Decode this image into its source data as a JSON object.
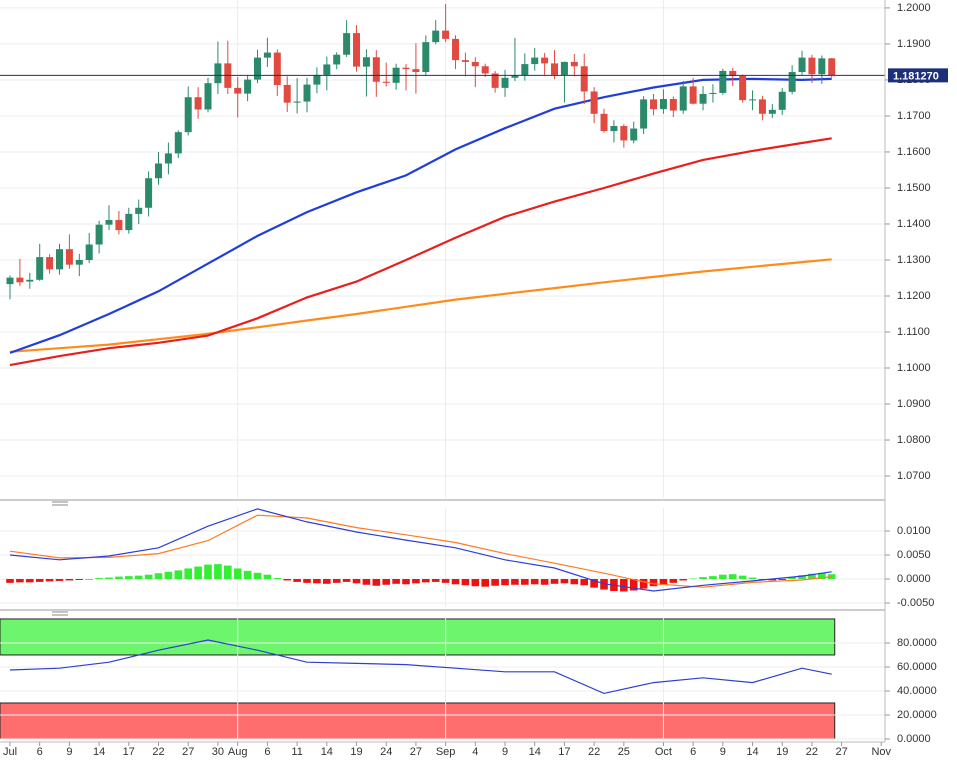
{
  "chart_data": [
    {
      "type": "candlestick",
      "xlim": [
        -1.01,
        88.38
      ],
      "ylim": [
        1.0639,
        1.2022
      ],
      "grid": true,
      "yticks": [
        {
          "value": 1.2,
          "label": "1.2000"
        },
        {
          "value": 1.19,
          "label": "1.1900"
        },
        {
          "value": 1.18,
          "label": "1.1800"
        },
        {
          "value": 1.17,
          "label": "1.1700"
        },
        {
          "value": 1.16,
          "label": "1.1600"
        },
        {
          "value": 1.15,
          "label": "1.1500"
        },
        {
          "value": 1.14,
          "label": "1.1400"
        },
        {
          "value": 1.13,
          "label": "1.1300"
        },
        {
          "value": 1.12,
          "label": "1.1200"
        },
        {
          "value": 1.11,
          "label": "1.1100"
        },
        {
          "value": 1.1,
          "label": "1.1000"
        },
        {
          "value": 1.09,
          "label": "1.0900"
        },
        {
          "value": 1.08,
          "label": "1.0800"
        },
        {
          "value": 1.07,
          "label": "1.0700"
        }
      ],
      "up_color": "#2a8a6a",
      "down_color": "#e04a40",
      "x": [
        0,
        1,
        2,
        3,
        4,
        5,
        6,
        7,
        8,
        9,
        10,
        11,
        12,
        13,
        14,
        15,
        16,
        17,
        18,
        19,
        20,
        21,
        22,
        23,
        24,
        25,
        26,
        27,
        28,
        29,
        30,
        31,
        32,
        33,
        34,
        35,
        36,
        37,
        38,
        39,
        40,
        41,
        42,
        43,
        44,
        45,
        46,
        47,
        48,
        49,
        50,
        51,
        52,
        53,
        54,
        55,
        56,
        57,
        58,
        59,
        60,
        61,
        62,
        63,
        64,
        65,
        66,
        67,
        68,
        69,
        70,
        71,
        72,
        73,
        74,
        75,
        76,
        77,
        78,
        79,
        80,
        81,
        82,
        83
      ],
      "open": [
        1.1233,
        1.1251,
        1.124,
        1.1245,
        1.1308,
        1.1274,
        1.133,
        1.1287,
        1.13,
        1.1343,
        1.1398,
        1.1411,
        1.1383,
        1.1428,
        1.1445,
        1.1527,
        1.1568,
        1.1596,
        1.1655,
        1.1752,
        1.1718,
        1.1791,
        1.1846,
        1.1778,
        1.1762,
        1.1801,
        1.1862,
        1.1876,
        1.1786,
        1.1737,
        1.174,
        1.1787,
        1.1814,
        1.1843,
        1.187,
        1.193,
        1.1837,
        1.1863,
        1.1795,
        1.1792,
        1.1834,
        1.183,
        1.1822,
        1.1905,
        1.1937,
        1.1914,
        1.1855,
        1.185,
        1.1838,
        1.1818,
        1.1778,
        1.1806,
        1.1813,
        1.1844,
        1.1862,
        1.1846,
        1.1814,
        1.185,
        1.1838,
        1.1768,
        1.1706,
        1.1658,
        1.1672,
        1.1632,
        1.1665,
        1.1746,
        1.1719,
        1.1747,
        1.1715,
        1.1782,
        1.1734,
        1.1761,
        1.1764,
        1.1825,
        1.1811,
        1.1744,
        1.1746,
        1.1706,
        1.1717,
        1.1767,
        1.1822,
        1.1862,
        1.1816,
        1.186
      ],
      "high": [
        1.1257,
        1.1303,
        1.1264,
        1.1345,
        1.1316,
        1.1345,
        1.1371,
        1.1317,
        1.1375,
        1.1409,
        1.1452,
        1.1436,
        1.1445,
        1.1468,
        1.1546,
        1.16,
        1.1626,
        1.166,
        1.1782,
        1.178,
        1.1806,
        1.1907,
        1.1909,
        1.1808,
        1.1814,
        1.1884,
        1.1917,
        1.1885,
        1.181,
        1.1805,
        1.1806,
        1.1835,
        1.1865,
        1.1877,
        1.1966,
        1.1952,
        1.1885,
        1.1883,
        1.1848,
        1.1845,
        1.1844,
        1.1902,
        1.1924,
        1.1966,
        1.2011,
        1.1924,
        1.1876,
        1.1863,
        1.1845,
        1.1825,
        1.1828,
        1.1917,
        1.1874,
        1.1889,
        1.1875,
        1.1883,
        1.1851,
        1.1872,
        1.1873,
        1.178,
        1.172,
        1.1688,
        1.1677,
        1.1684,
        1.1755,
        1.1761,
        1.1774,
        1.1754,
        1.1797,
        1.1806,
        1.1783,
        1.1788,
        1.1831,
        1.1833,
        1.1815,
        1.1771,
        1.1756,
        1.1733,
        1.1778,
        1.1841,
        1.1881,
        1.187,
        1.1868,
        1.1861
      ],
      "low": [
        1.1191,
        1.1228,
        1.122,
        1.1242,
        1.1262,
        1.1259,
        1.1276,
        1.1255,
        1.1291,
        1.1318,
        1.1383,
        1.1371,
        1.1373,
        1.14,
        1.1421,
        1.1509,
        1.1538,
        1.1583,
        1.1646,
        1.1692,
        1.171,
        1.1761,
        1.1761,
        1.1696,
        1.1741,
        1.1791,
        1.1836,
        1.1755,
        1.1711,
        1.1707,
        1.171,
        1.1763,
        1.1771,
        1.183,
        1.1864,
        1.1823,
        1.1754,
        1.1753,
        1.1782,
        1.1773,
        1.1771,
        1.1762,
        1.1811,
        1.1899,
        1.1905,
        1.183,
        1.181,
        1.178,
        1.1808,
        1.1765,
        1.1753,
        1.1797,
        1.1798,
        1.1826,
        1.1812,
        1.1802,
        1.1737,
        1.181,
        1.1733,
        1.168,
        1.1653,
        1.1626,
        1.1612,
        1.1624,
        1.165,
        1.1702,
        1.1706,
        1.1697,
        1.1706,
        1.1732,
        1.1716,
        1.1737,
        1.1759,
        1.1783,
        1.1737,
        1.1716,
        1.1688,
        1.1694,
        1.1703,
        1.176,
        1.1814,
        1.1791,
        1.1789,
        1.1806
      ],
      "close": [
        1.1251,
        1.1238,
        1.1245,
        1.1308,
        1.1274,
        1.133,
        1.1287,
        1.13,
        1.1343,
        1.1398,
        1.1411,
        1.1383,
        1.1428,
        1.1445,
        1.1527,
        1.1568,
        1.1596,
        1.1655,
        1.1752,
        1.1718,
        1.1791,
        1.1846,
        1.1778,
        1.1762,
        1.1801,
        1.1862,
        1.1876,
        1.1786,
        1.1737,
        1.174,
        1.1787,
        1.1814,
        1.1843,
        1.187,
        1.193,
        1.1837,
        1.1863,
        1.1795,
        1.1792,
        1.1834,
        1.183,
        1.1822,
        1.1905,
        1.1937,
        1.1914,
        1.1855,
        1.185,
        1.1838,
        1.1818,
        1.1778,
        1.1806,
        1.1813,
        1.1844,
        1.1862,
        1.1846,
        1.1814,
        1.185,
        1.1838,
        1.1768,
        1.1706,
        1.1658,
        1.1672,
        1.1632,
        1.1665,
        1.1746,
        1.1719,
        1.1747,
        1.1715,
        1.1782,
        1.1734,
        1.1761,
        1.1764,
        1.1825,
        1.1811,
        1.1744,
        1.1746,
        1.1706,
        1.1717,
        1.1767,
        1.1822,
        1.1862,
        1.1816,
        1.186,
        1.1813
      ],
      "lines": [
        {
          "color": "#ff8c1a",
          "x": [
            0,
            5,
            10,
            15,
            20,
            25,
            30,
            35,
            40,
            45,
            50,
            55,
            60,
            65,
            70,
            75,
            80,
            83
          ],
          "values": [
            1.1045,
            1.1055,
            1.1065,
            1.108,
            1.1095,
            1.1113,
            1.1132,
            1.115,
            1.117,
            1.119,
            1.1206,
            1.1222,
            1.1238,
            1.1253,
            1.1268,
            1.1281,
            1.1294,
            1.1302
          ]
        },
        {
          "color": "#e8201c",
          "x": [
            0,
            5,
            10,
            15,
            20,
            25,
            30,
            35,
            40,
            45,
            50,
            55,
            60,
            65,
            70,
            75,
            80,
            83
          ],
          "values": [
            1.1008,
            1.1033,
            1.1055,
            1.107,
            1.109,
            1.1138,
            1.1196,
            1.124,
            1.13,
            1.1362,
            1.142,
            1.1462,
            1.15,
            1.154,
            1.1578,
            1.1603,
            1.1625,
            1.1638
          ]
        },
        {
          "color": "#1f3fd8",
          "x": [
            0,
            5,
            10,
            15,
            20,
            25,
            30,
            35,
            40,
            45,
            50,
            55,
            60,
            65,
            70,
            75,
            80,
            83
          ],
          "values": [
            1.1042,
            1.1091,
            1.115,
            1.1213,
            1.129,
            1.1367,
            1.1433,
            1.1488,
            1.1535,
            1.1607,
            1.1666,
            1.172,
            1.1752,
            1.1779,
            1.18,
            1.1803,
            1.18,
            1.1803
          ]
        }
      ],
      "last_price": {
        "value": 1.18127,
        "label": "1.181270",
        "color": "#1c2f7a"
      }
    },
    {
      "type": "macd",
      "xlim": [
        -1.01,
        88.38
      ],
      "ylim": [
        -0.00583,
        0.01479
      ],
      "grid": true,
      "yticks": [
        {
          "value": 0.01,
          "label": "0.0100"
        },
        {
          "value": 0.005,
          "label": "0.0050"
        },
        {
          "value": 0,
          "label": "0.0000"
        },
        {
          "value": -0.005,
          "label": "-0.0050"
        }
      ],
      "pos_color": "#33ee33",
      "neg_color": "#ee1111",
      "x": [
        0,
        1,
        2,
        3,
        4,
        5,
        6,
        7,
        8,
        9,
        10,
        11,
        12,
        13,
        14,
        15,
        16,
        17,
        18,
        19,
        20,
        21,
        22,
        23,
        24,
        25,
        26,
        27,
        28,
        29,
        30,
        31,
        32,
        33,
        34,
        35,
        36,
        37,
        38,
        39,
        40,
        41,
        42,
        43,
        44,
        45,
        46,
        47,
        48,
        49,
        50,
        51,
        52,
        53,
        54,
        55,
        56,
        57,
        58,
        59,
        60,
        61,
        62,
        63,
        64,
        65,
        66,
        67,
        68,
        69,
        70,
        71,
        72,
        73,
        74,
        75,
        76,
        77,
        78,
        79,
        80,
        81,
        82,
        83
      ],
      "values": [
        -0.0008,
        -0.0007,
        -0.0007,
        -0.0006,
        -0.0005,
        -0.0004,
        -0.0003,
        -0.0002,
        -0.0001,
        0.0002,
        0.0003,
        0.0005,
        0.0006,
        0.0007,
        0.0009,
        0.0012,
        0.0015,
        0.0018,
        0.0022,
        0.0026,
        0.003,
        0.0031,
        0.0028,
        0.0022,
        0.0017,
        0.0013,
        0.0009,
        0.0002,
        -0.0003,
        -0.0006,
        -0.0008,
        -0.0009,
        -0.001,
        -0.0008,
        -0.0006,
        -0.0009,
        -0.0012,
        -0.0014,
        -0.0012,
        -0.001,
        -0.0011,
        -0.0009,
        -0.0007,
        -0.0006,
        -0.0008,
        -0.0011,
        -0.0013,
        -0.0015,
        -0.0016,
        -0.0014,
        -0.0013,
        -0.0012,
        -0.0012,
        -0.0011,
        -0.0012,
        -0.001,
        -0.0009,
        -0.0011,
        -0.0013,
        -0.0018,
        -0.0022,
        -0.0025,
        -0.0026,
        -0.0024,
        -0.002,
        -0.0015,
        -0.0012,
        -0.0008,
        -0.0003,
        0.0001,
        0.0004,
        0.0006,
        0.0009,
        0.001,
        0.0007,
        0.0003,
        -0.0001,
        -0.0003,
        -0.0002,
        0.0004,
        0.0008,
        0.0011,
        0.0013,
        0.001
      ],
      "lines": [
        {
          "color": "#ff7a22",
          "x": [
            0,
            5,
            10,
            15,
            20,
            25,
            30,
            35,
            40,
            45,
            50,
            55,
            60,
            65,
            70,
            75,
            80,
            83
          ],
          "values": [
            0.0058,
            0.0044,
            0.0045,
            0.0053,
            0.008,
            0.0133,
            0.0127,
            0.0107,
            0.0092,
            0.0076,
            0.0053,
            0.0033,
            0.0012,
            -0.001,
            -0.0017,
            -0.0007,
            -0.0002,
            0.0005
          ]
        },
        {
          "color": "#2a3fdc",
          "x": [
            0,
            5,
            10,
            15,
            20,
            25,
            30,
            35,
            40,
            45,
            50,
            55,
            60,
            65,
            70,
            75,
            80,
            83
          ],
          "values": [
            0.005,
            0.004,
            0.0048,
            0.0065,
            0.011,
            0.0146,
            0.0119,
            0.0098,
            0.0081,
            0.0065,
            0.004,
            0.0023,
            -0.001,
            -0.0025,
            -0.0013,
            -0.0004,
            0.0006,
            0.0015
          ]
        }
      ]
    },
    {
      "type": "line",
      "xlim": [
        -1.01,
        88.38
      ],
      "ylim": [
        -2.5,
        100.8
      ],
      "grid": true,
      "yticks": [
        {
          "value": 80,
          "label": "80.0000"
        },
        {
          "value": 60,
          "label": "60.0000"
        },
        {
          "value": 40,
          "label": "40.0000"
        },
        {
          "value": 20,
          "label": "20.0000"
        },
        {
          "value": 0,
          "label": "0.0000"
        }
      ],
      "zones": [
        {
          "from": 70,
          "to": 100,
          "color": "#6ef56e"
        },
        {
          "from": 0,
          "to": 30,
          "color": "#ff6e6e"
        }
      ],
      "lines": [
        {
          "color": "#2c3fd1",
          "x": [
            0,
            5,
            10,
            15,
            20,
            25,
            30,
            35,
            40,
            45,
            50,
            55,
            60,
            65,
            70,
            75,
            80,
            83
          ],
          "values": [
            57.5,
            59,
            64,
            74,
            82.5,
            74,
            64,
            63,
            62,
            59,
            56,
            56,
            38,
            47,
            51,
            47,
            59,
            54
          ]
        }
      ],
      "xticks": [
        {
          "value": 0,
          "label": "Jul"
        },
        {
          "value": 3,
          "label": "6"
        },
        {
          "value": 6,
          "label": "9"
        },
        {
          "value": 9,
          "label": "14"
        },
        {
          "value": 12,
          "label": "17"
        },
        {
          "value": 15,
          "label": "22"
        },
        {
          "value": 18,
          "label": "27"
        },
        {
          "value": 21,
          "label": "30"
        },
        {
          "value": 23,
          "label": "Aug",
          "grid": true
        },
        {
          "value": 26,
          "label": "6"
        },
        {
          "value": 29,
          "label": "11"
        },
        {
          "value": 32,
          "label": "14"
        },
        {
          "value": 35,
          "label": "19"
        },
        {
          "value": 38,
          "label": "24"
        },
        {
          "value": 41,
          "label": "27"
        },
        {
          "value": 44,
          "label": "Sep",
          "grid": true
        },
        {
          "value": 47,
          "label": "4"
        },
        {
          "value": 50,
          "label": "9"
        },
        {
          "value": 53,
          "label": "14"
        },
        {
          "value": 56,
          "label": "17"
        },
        {
          "value": 59,
          "label": "22"
        },
        {
          "value": 62,
          "label": "25"
        },
        {
          "value": 66,
          "label": "Oct",
          "grid": true
        },
        {
          "value": 69,
          "label": "6"
        },
        {
          "value": 72,
          "label": "9"
        },
        {
          "value": 75,
          "label": "14"
        },
        {
          "value": 78,
          "label": "19"
        },
        {
          "value": 81,
          "label": "22"
        },
        {
          "value": 84,
          "label": "27"
        },
        {
          "value": 88,
          "label": "Nov"
        }
      ]
    }
  ]
}
